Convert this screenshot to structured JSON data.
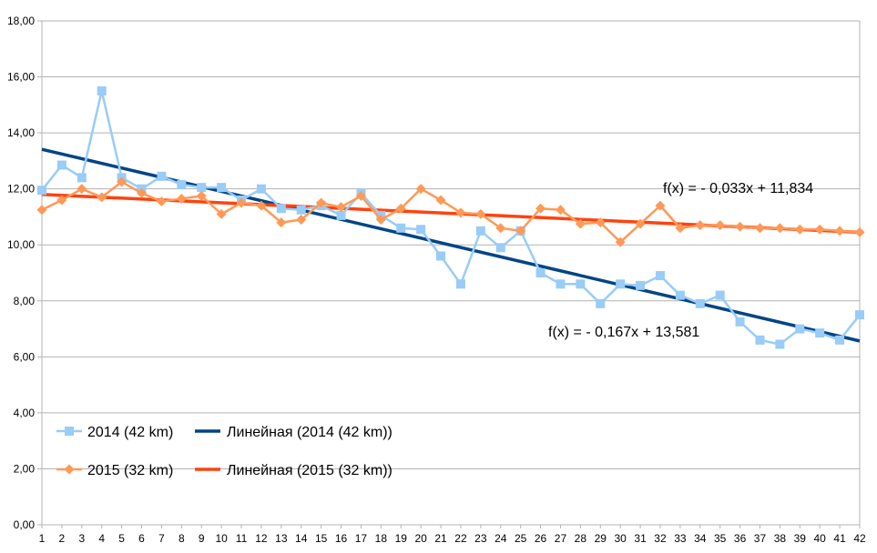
{
  "chart_data": {
    "type": "line",
    "title": "",
    "xlabel": "",
    "ylabel": "",
    "x": [
      1,
      2,
      3,
      4,
      5,
      6,
      7,
      8,
      9,
      10,
      11,
      12,
      13,
      14,
      15,
      16,
      17,
      18,
      19,
      20,
      21,
      22,
      23,
      24,
      25,
      26,
      27,
      28,
      29,
      30,
      31,
      32,
      33,
      34,
      35,
      36,
      37,
      38,
      39,
      40,
      41,
      42
    ],
    "x_tick_labels": [
      "1",
      "2",
      "3",
      "4",
      "5",
      "6",
      "7",
      "8",
      "9",
      "10",
      "11",
      "12",
      "13",
      "14",
      "15",
      "16",
      "17",
      "18",
      "19",
      "20",
      "21",
      "22",
      "23",
      "24",
      "25",
      "26",
      "27",
      "28",
      "29",
      "30",
      "31",
      "32",
      "33",
      "34",
      "35",
      "36",
      "37",
      "38",
      "39",
      "40",
      "41",
      "42"
    ],
    "ylim": [
      0,
      18
    ],
    "y_ticks": [
      0,
      2,
      4,
      6,
      8,
      10,
      12,
      14,
      16,
      18
    ],
    "y_tick_labels": [
      "0,00",
      "2,00",
      "4,00",
      "6,00",
      "8,00",
      "10,00",
      "12,00",
      "14,00",
      "16,00",
      "18,00"
    ],
    "grid": "horizontal",
    "legend_position": "bottom-left",
    "series": [
      {
        "name": "2014 (42 km)",
        "color": "#99ccf7",
        "marker": "square",
        "values": [
          11.95,
          12.85,
          12.4,
          15.5,
          12.4,
          12.0,
          12.45,
          12.15,
          12.05,
          12.05,
          11.6,
          12.0,
          11.3,
          11.25,
          11.4,
          11.05,
          11.85,
          11.05,
          10.6,
          10.55,
          9.6,
          8.6,
          10.5,
          9.9,
          10.5,
          9.0,
          8.6,
          8.6,
          7.9,
          8.6,
          8.55,
          8.9,
          8.2,
          7.9,
          8.2,
          7.25,
          6.6,
          6.45,
          7.0,
          6.85,
          6.6,
          7.5
        ]
      },
      {
        "name": "2015 (32 km)",
        "color": "#ff9955",
        "marker": "diamond",
        "values": [
          11.25,
          11.6,
          12.0,
          11.7,
          12.25,
          11.85,
          11.55,
          11.65,
          11.75,
          11.1,
          11.5,
          11.4,
          10.8,
          10.9,
          11.5,
          11.35,
          11.75,
          10.9,
          11.3,
          12.0,
          11.6,
          11.15,
          11.1,
          10.6,
          10.5,
          11.3,
          11.25,
          10.75,
          10.8,
          10.1,
          10.75,
          11.4,
          10.6,
          10.7,
          10.7,
          10.65,
          10.6,
          10.6,
          10.55,
          10.55,
          10.5,
          10.45
        ]
      }
    ],
    "trendlines": [
      {
        "name": "Линейная (2014 (42 km))",
        "color": "#004586",
        "slope": -0.167,
        "intercept": 13.581,
        "equation": "f(x) =  - 0,167x + 13,581",
        "x_range": [
          1,
          42
        ]
      },
      {
        "name": "Линейная (2015 (32 km))",
        "color": "#ff420e",
        "slope": -0.033,
        "intercept": 11.834,
        "equation": "f(x) =  - 0,033x + 11,834",
        "x_range": [
          1,
          42
        ]
      }
    ],
    "grid_color": "#b3b3b3",
    "axis_color": "#b3b3b3"
  }
}
